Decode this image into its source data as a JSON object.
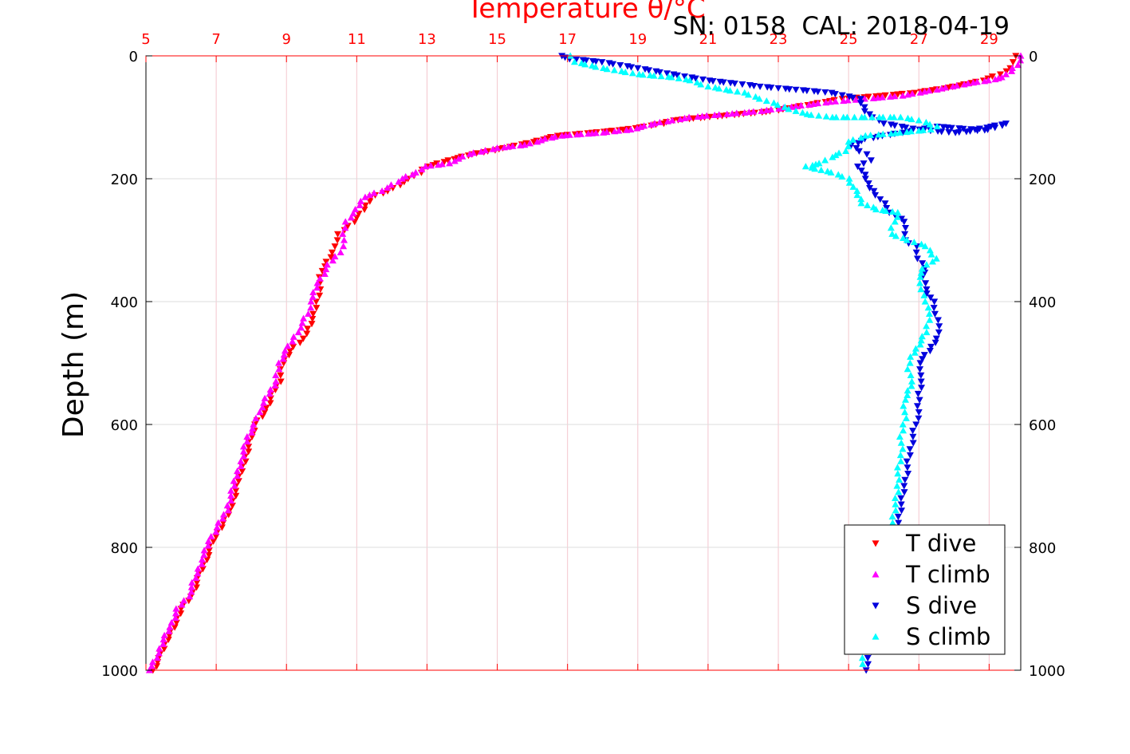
{
  "chart_data": {
    "type": "scatter",
    "title": "Temperature θ/°C",
    "annotation": "SN: 0158  CAL: 2018-04-19",
    "xlabel": "Temperature θ/°C",
    "ylabel": "Depth (m)",
    "xlim": [
      5,
      29.9
    ],
    "ylim": [
      1000,
      0
    ],
    "x_ticks": [
      "5",
      "7",
      "9",
      "11",
      "13",
      "15",
      "17",
      "19",
      "21",
      "23",
      "25",
      "27",
      "29"
    ],
    "y_ticks": [
      "0",
      "200",
      "400",
      "600",
      "800",
      "1000"
    ],
    "grid": true,
    "legend_position": "bottom-right",
    "colors": {
      "t_dive": "#ff0000",
      "t_climb": "#ff00ff",
      "s_dive": "#0000dd",
      "s_climb": "#00ffff",
      "top_axis": "#ff0000"
    },
    "series": [
      {
        "name": "T dive",
        "marker": "triangle-down",
        "color": "#ff0000",
        "points": [
          [
            29.8,
            0
          ],
          [
            29.7,
            10
          ],
          [
            29.6,
            20
          ],
          [
            29.3,
            30
          ],
          [
            28.8,
            40
          ],
          [
            28.0,
            50
          ],
          [
            26.9,
            60
          ],
          [
            25.9,
            65
          ],
          [
            24.8,
            70
          ],
          [
            23.8,
            80
          ],
          [
            22.8,
            90
          ],
          [
            21.9,
            95
          ],
          [
            20.9,
            100
          ],
          [
            20.0,
            105
          ],
          [
            19.7,
            110
          ],
          [
            19.2,
            115
          ],
          [
            18.6,
            120
          ],
          [
            17.7,
            125
          ],
          [
            16.7,
            130
          ],
          [
            16.0,
            140
          ],
          [
            15.2,
            150
          ],
          [
            14.3,
            160
          ],
          [
            13.6,
            170
          ],
          [
            13.0,
            180
          ],
          [
            12.8,
            190
          ],
          [
            12.5,
            200
          ],
          [
            11.9,
            220
          ],
          [
            11.4,
            230
          ],
          [
            11.2,
            250
          ],
          [
            10.9,
            270
          ],
          [
            10.5,
            290
          ],
          [
            10.4,
            310
          ],
          [
            10.3,
            320
          ],
          [
            10.0,
            350
          ],
          [
            9.9,
            390
          ],
          [
            9.8,
            420
          ],
          [
            9.5,
            460
          ],
          [
            9.1,
            480
          ],
          [
            8.9,
            500
          ],
          [
            8.8,
            530
          ],
          [
            8.6,
            550
          ],
          [
            8.4,
            580
          ],
          [
            8.1,
            600
          ],
          [
            8.0,
            620
          ],
          [
            7.8,
            660
          ],
          [
            7.6,
            700
          ],
          [
            7.4,
            740
          ],
          [
            7.2,
            760
          ],
          [
            6.9,
            790
          ],
          [
            6.7,
            820
          ],
          [
            6.5,
            850
          ],
          [
            6.3,
            880
          ],
          [
            6.0,
            900
          ],
          [
            5.8,
            930
          ],
          [
            5.6,
            950
          ],
          [
            5.4,
            980
          ],
          [
            5.2,
            1000
          ]
        ]
      },
      {
        "name": "T climb",
        "marker": "triangle-up",
        "color": "#ff00ff",
        "points": [
          [
            29.9,
            0
          ],
          [
            29.8,
            15
          ],
          [
            29.6,
            25
          ],
          [
            29.4,
            35
          ],
          [
            29.0,
            40
          ],
          [
            28.4,
            45
          ],
          [
            27.5,
            55
          ],
          [
            26.5,
            65
          ],
          [
            25.5,
            70
          ],
          [
            24.5,
            75
          ],
          [
            23.5,
            82
          ],
          [
            22.5,
            90
          ],
          [
            21.5,
            95
          ],
          [
            20.5,
            100
          ],
          [
            19.5,
            110
          ],
          [
            18.8,
            120
          ],
          [
            18.0,
            125
          ],
          [
            16.8,
            130
          ],
          [
            16.4,
            135
          ],
          [
            15.8,
            145
          ],
          [
            15.0,
            150
          ],
          [
            14.2,
            160
          ],
          [
            13.6,
            175
          ],
          [
            13.0,
            180
          ],
          [
            12.7,
            190
          ],
          [
            12.3,
            200
          ],
          [
            11.7,
            220
          ],
          [
            11.2,
            230
          ],
          [
            11.0,
            250
          ],
          [
            10.7,
            270
          ],
          [
            10.6,
            290
          ],
          [
            10.6,
            310
          ],
          [
            10.5,
            320
          ],
          [
            10.2,
            340
          ],
          [
            9.9,
            370
          ],
          [
            9.7,
            400
          ],
          [
            9.6,
            420
          ],
          [
            9.3,
            450
          ],
          [
            9.0,
            480
          ],
          [
            8.8,
            500
          ],
          [
            8.7,
            530
          ],
          [
            8.5,
            550
          ],
          [
            8.2,
            580
          ],
          [
            8.1,
            600
          ],
          [
            7.9,
            620
          ],
          [
            7.7,
            660
          ],
          [
            7.5,
            700
          ],
          [
            7.3,
            740
          ],
          [
            7.1,
            760
          ],
          [
            6.8,
            790
          ],
          [
            6.6,
            820
          ],
          [
            6.4,
            850
          ],
          [
            6.2,
            880
          ],
          [
            5.9,
            900
          ],
          [
            5.7,
            930
          ],
          [
            5.5,
            950
          ],
          [
            5.3,
            980
          ],
          [
            5.1,
            1000
          ]
        ]
      },
      {
        "name": "S dive",
        "marker": "triangle-down",
        "color": "#0000dd",
        "points": [
          [
            16.8,
            0
          ],
          [
            17.1,
            5
          ],
          [
            18.0,
            10
          ],
          [
            19.0,
            20
          ],
          [
            20.0,
            30
          ],
          [
            21.0,
            40
          ],
          [
            21.8,
            45
          ],
          [
            22.5,
            50
          ],
          [
            23.5,
            55
          ],
          [
            24.5,
            60
          ],
          [
            25.3,
            70
          ],
          [
            25.5,
            90
          ],
          [
            25.7,
            100
          ],
          [
            26.0,
            110
          ],
          [
            27.0,
            120
          ],
          [
            28.0,
            125
          ],
          [
            29.0,
            120
          ],
          [
            29.5,
            110
          ],
          [
            28.6,
            120
          ],
          [
            27.5,
            115
          ],
          [
            26.5,
            125
          ],
          [
            25.5,
            135
          ],
          [
            25.1,
            145
          ],
          [
            25.3,
            155
          ],
          [
            25.5,
            160
          ],
          [
            25.6,
            170
          ],
          [
            25.3,
            180
          ],
          [
            25.5,
            200
          ],
          [
            25.6,
            215
          ],
          [
            25.7,
            220
          ],
          [
            26.0,
            240
          ],
          [
            26.2,
            255
          ],
          [
            26.6,
            270
          ],
          [
            26.6,
            290
          ],
          [
            26.6,
            300
          ],
          [
            26.9,
            310
          ],
          [
            27.0,
            330
          ],
          [
            27.2,
            345
          ],
          [
            27.1,
            360
          ],
          [
            27.2,
            380
          ],
          [
            27.4,
            400
          ],
          [
            27.5,
            420
          ],
          [
            27.6,
            440
          ],
          [
            27.5,
            460
          ],
          [
            27.3,
            480
          ],
          [
            27.0,
            500
          ],
          [
            27.1,
            520
          ],
          [
            27.0,
            550
          ],
          [
            27.0,
            580
          ],
          [
            26.9,
            600
          ],
          [
            26.8,
            630
          ],
          [
            26.7,
            660
          ],
          [
            26.6,
            700
          ],
          [
            26.5,
            730
          ],
          [
            26.4,
            760
          ],
          [
            26.3,
            800
          ],
          [
            26.1,
            840
          ],
          [
            26.0,
            880
          ],
          [
            25.9,
            910
          ],
          [
            25.8,
            940
          ],
          [
            25.6,
            970
          ],
          [
            25.5,
            1000
          ]
        ]
      },
      {
        "name": "S climb",
        "marker": "triangle-up",
        "color": "#00ffff",
        "points": [
          [
            17.1,
            0
          ],
          [
            17.2,
            10
          ],
          [
            18.0,
            20
          ],
          [
            19.0,
            30
          ],
          [
            20.0,
            35
          ],
          [
            20.5,
            40
          ],
          [
            21.0,
            50
          ],
          [
            21.5,
            55
          ],
          [
            22.0,
            60
          ],
          [
            22.5,
            70
          ],
          [
            23.0,
            80
          ],
          [
            23.5,
            90
          ],
          [
            23.8,
            95
          ],
          [
            24.5,
            100
          ],
          [
            25.5,
            100
          ],
          [
            26.5,
            100
          ],
          [
            27.0,
            105
          ],
          [
            27.5,
            115
          ],
          [
            27.3,
            120
          ],
          [
            26.5,
            125
          ],
          [
            25.5,
            130
          ],
          [
            25.0,
            140
          ],
          [
            24.9,
            155
          ],
          [
            24.5,
            165
          ],
          [
            24.2,
            175
          ],
          [
            23.8,
            180
          ],
          [
            24.5,
            190
          ],
          [
            25.0,
            200
          ],
          [
            25.2,
            220
          ],
          [
            25.4,
            240
          ],
          [
            25.8,
            250
          ],
          [
            26.4,
            255
          ],
          [
            26.3,
            270
          ],
          [
            26.2,
            290
          ],
          [
            26.7,
            300
          ],
          [
            27.2,
            310
          ],
          [
            27.5,
            330
          ],
          [
            27.2,
            340
          ],
          [
            27.0,
            360
          ],
          [
            27.1,
            380
          ],
          [
            27.2,
            400
          ],
          [
            27.3,
            420
          ],
          [
            27.2,
            450
          ],
          [
            27.0,
            470
          ],
          [
            26.8,
            490
          ],
          [
            26.7,
            510
          ],
          [
            26.8,
            530
          ],
          [
            26.6,
            560
          ],
          [
            26.6,
            590
          ],
          [
            26.5,
            620
          ],
          [
            26.5,
            650
          ],
          [
            26.4,
            680
          ],
          [
            26.4,
            710
          ],
          [
            26.3,
            740
          ],
          [
            26.2,
            770
          ],
          [
            26.0,
            800
          ],
          [
            25.9,
            840
          ],
          [
            25.8,
            870
          ],
          [
            25.7,
            900
          ],
          [
            25.6,
            930
          ],
          [
            25.5,
            960
          ],
          [
            25.4,
            990
          ]
        ]
      }
    ]
  }
}
